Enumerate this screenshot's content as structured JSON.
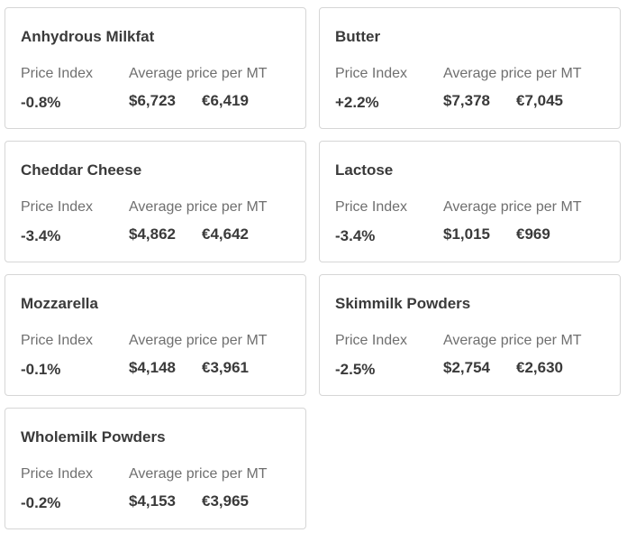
{
  "cards": [
    {
      "title": "Anhydrous Milkfat",
      "index_label": "Price Index",
      "avg_label": "Average price per MT",
      "index_value": "-0.8%",
      "usd": "$6,723",
      "eur": "€6,419"
    },
    {
      "title": "Butter",
      "index_label": "Price Index",
      "avg_label": "Average price per MT",
      "index_value": "+2.2%",
      "usd": "$7,378",
      "eur": "€7,045"
    },
    {
      "title": "Cheddar Cheese",
      "index_label": "Price Index",
      "avg_label": "Average price per MT",
      "index_value": "-3.4%",
      "usd": "$4,862",
      "eur": "€4,642"
    },
    {
      "title": "Lactose",
      "index_label": "Price Index",
      "avg_label": "Average price per MT",
      "index_value": "-3.4%",
      "usd": "$1,015",
      "eur": "€969"
    },
    {
      "title": "Mozzarella",
      "index_label": "Price Index",
      "avg_label": "Average price per MT",
      "index_value": "-0.1%",
      "usd": "$4,148",
      "eur": "€3,961"
    },
    {
      "title": "Skimmilk Powders",
      "index_label": "Price Index",
      "avg_label": "Average price per MT",
      "index_value": "-2.5%",
      "usd": "$2,754",
      "eur": "€2,630"
    },
    {
      "title": "Wholemilk Powders",
      "index_label": "Price Index",
      "avg_label": "Average price per MT",
      "index_value": "-0.2%",
      "usd": "$4,153",
      "eur": "€3,965"
    }
  ]
}
